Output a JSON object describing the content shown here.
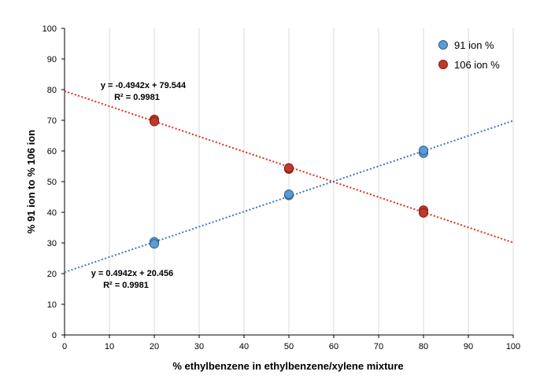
{
  "chart_data": {
    "type": "scatter",
    "xlabel": "% ethylbenzene in ethylbenzene/xylene mixture",
    "ylabel": "% 91 ion to % 106 ion",
    "xlim": [
      0,
      100
    ],
    "ylim": [
      0,
      100
    ],
    "xticks": [
      "0",
      "10",
      "20",
      "30",
      "40",
      "50",
      "60",
      "70",
      "80",
      "90",
      "100"
    ],
    "yticks": [
      "0",
      "10",
      "20",
      "30",
      "40",
      "50",
      "60",
      "70",
      "80",
      "90",
      "100"
    ],
    "grid": "vertical",
    "legend_position": "top-right",
    "series": [
      {
        "name": "91 ion %",
        "color": "#5b9bd5",
        "edge": "#2e5f8f",
        "points": [
          [
            20,
            30.4
          ],
          [
            20,
            29.7
          ],
          [
            50,
            45.5
          ],
          [
            50,
            45.9
          ],
          [
            80,
            59.3
          ],
          [
            80,
            60.2
          ]
        ],
        "trendline": {
          "slope": 0.4942,
          "intercept": 20.456,
          "color": "#4472c4",
          "equation": "y = 0.4942x + 20.456",
          "r2": "R² = 0.9981"
        }
      },
      {
        "name": "106 ion %",
        "color": "#c0392b",
        "edge": "#8b1a10",
        "points": [
          [
            20,
            70.3
          ],
          [
            20,
            69.6
          ],
          [
            50,
            54.1
          ],
          [
            50,
            54.5
          ],
          [
            80,
            40.7
          ],
          [
            80,
            39.8
          ]
        ],
        "trendline": {
          "slope": -0.4942,
          "intercept": 79.544,
          "color": "#e8291c",
          "equation": "y = -0.4942x + 79.544",
          "r2": "R² = 0.9981"
        }
      }
    ]
  }
}
